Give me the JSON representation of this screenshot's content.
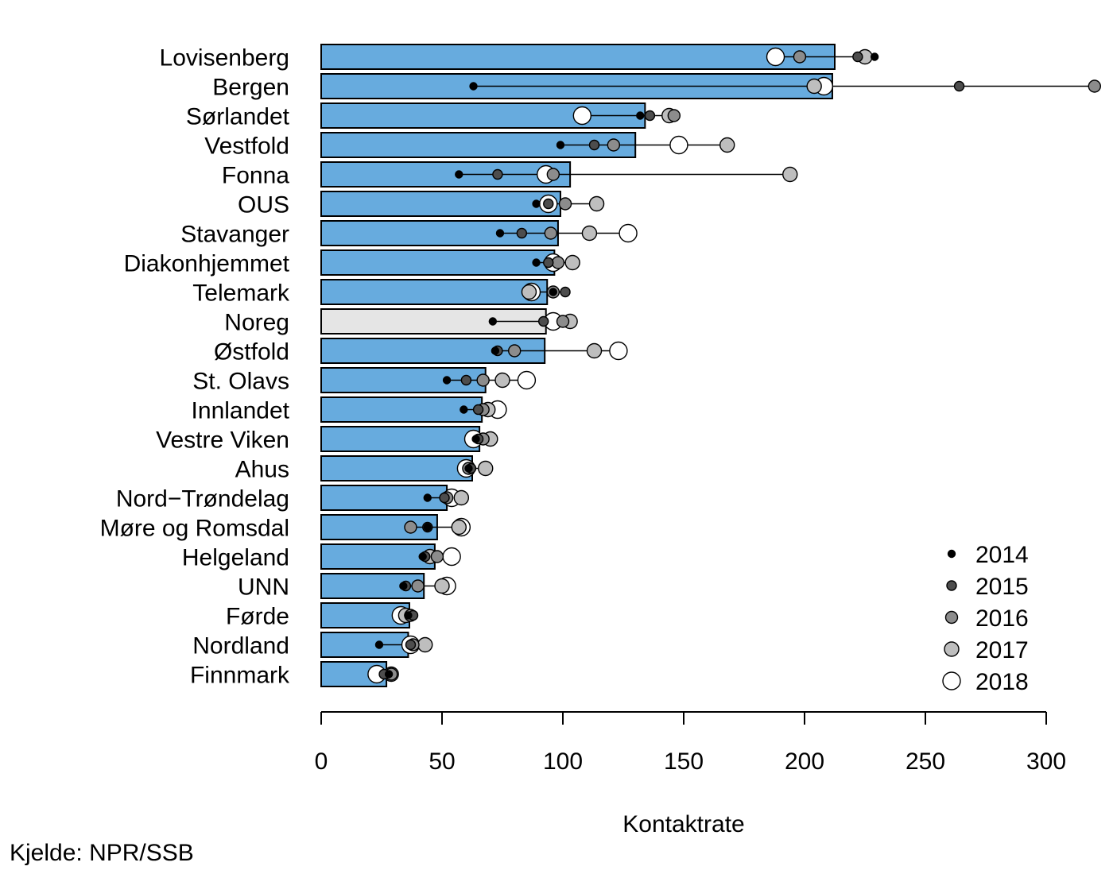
{
  "chart_data": {
    "type": "bar",
    "xlabel": "Kontaktrate",
    "ylabel": "",
    "xlim": [
      0,
      300
    ],
    "x_ticks": [
      0,
      50,
      100,
      150,
      200,
      250,
      300
    ],
    "categories": [
      "Lovisenberg",
      "Bergen",
      "Sørlandet",
      "Vestfold",
      "Fonna",
      "OUS",
      "Stavanger",
      "Diakonhjemmet",
      "Telemark",
      "Noreg",
      "Østfold",
      "St. Olavs",
      "Innlandet",
      "Vestre Viken",
      "Ahus",
      "Nord−Trøndelag",
      "Møre og Romsdal",
      "Helgeland",
      "UNN",
      "Førde",
      "Nordland",
      "Finnmark"
    ],
    "bar_values": [
      212.5,
      211.5,
      134,
      130,
      103,
      99,
      98,
      96.5,
      93.5,
      93,
      92.5,
      68,
      66.5,
      65.5,
      62.5,
      52,
      48,
      47,
      42.5,
      36.5,
      36,
      27
    ],
    "highlight_category": "Noreg",
    "bar_color": "#67ABDE",
    "highlight_color": "#E5E5E5",
    "series": [
      {
        "name": "2014",
        "values": [
          229,
          63,
          132,
          99,
          57,
          89,
          74,
          89,
          96,
          71,
          72,
          52,
          59,
          64,
          61,
          44,
          44,
          42,
          34,
          36,
          24,
          28
        ]
      },
      {
        "name": "2015",
        "values": [
          222,
          264,
          136,
          113,
          73,
          94,
          83,
          94,
          101,
          92,
          73,
          60,
          65,
          65,
          62,
          51,
          44,
          43,
          35,
          38,
          37,
          26
        ]
      },
      {
        "name": "2016",
        "values": [
          198,
          320,
          146,
          121,
          96,
          101,
          95,
          98,
          96,
          100,
          80,
          67,
          67,
          67,
          61,
          52,
          37,
          48,
          40,
          37,
          38,
          29
        ]
      },
      {
        "name": "2017",
        "values": [
          225,
          204,
          144,
          168,
          194,
          114,
          111,
          104,
          86,
          103,
          113,
          75,
          69,
          70,
          68,
          58,
          57,
          45,
          50,
          35,
          43,
          29
        ]
      },
      {
        "name": "2018",
        "values": [
          188,
          208,
          108,
          148,
          93,
          94,
          127,
          96,
          87,
          96,
          123,
          85,
          73,
          63,
          60,
          54,
          58,
          54,
          52,
          33,
          37,
          23
        ]
      }
    ],
    "series_colors": {
      "2014": "#000000",
      "2015": "#4D4D4D",
      "2016": "#8C8C8C",
      "2017": "#BEBEBE",
      "2018": "#FFFFFF"
    },
    "legend_position": "bottom-right",
    "grid": false
  },
  "source_note": "Kjelde: NPR/SSB"
}
